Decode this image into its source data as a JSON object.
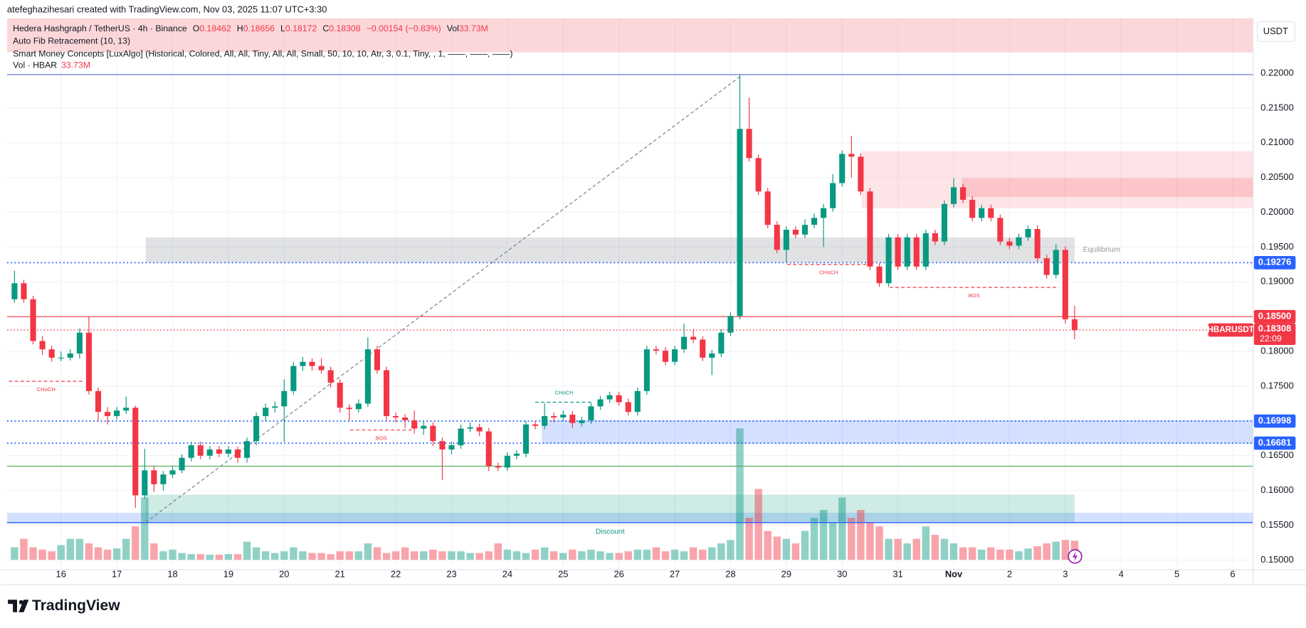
{
  "header": "atefeghazihesari created with TradingView.com, Nov 03, 2025 11:07 UTC+3:30",
  "footer_logo": "TradingView",
  "chart_data": {
    "type": "candlestick",
    "legend": {
      "symbol": "Hedera Hashgraph / TetherUS · 4h · Binance",
      "ohlc_letters": [
        "O",
        "H",
        "L",
        "C"
      ],
      "change": "−0.00154 (−0.83%)",
      "volume_prefix": "Vol",
      "volume_label": "33.73M"
    },
    "indicators": [
      "Auto Fib Retracement (10, 13)",
      "Smart Money Concepts [LuxAlgo] (Historical, Colored, All, All, Tiny, All, All, Small, 50, 10, 10, Atr, 3, 0.1, Tiny, , 1, ——, ——, ——)"
    ],
    "volume_legend": {
      "name": "Vol · HBAR",
      "value": "33.73M"
    },
    "currency": "USDT",
    "up_color": "#089981",
    "down_color": "#f23645",
    "ohlc": [
      [
        0.1875,
        0.1916,
        0.187,
        0.1898
      ],
      [
        0.1898,
        0.1903,
        0.187,
        0.1875
      ],
      [
        0.1875,
        0.188,
        0.181,
        0.1815
      ],
      [
        0.1815,
        0.1822,
        0.1795,
        0.1803
      ],
      [
        0.1803,
        0.1808,
        0.1785,
        0.1791
      ],
      [
        0.1791,
        0.18,
        0.1786,
        0.1791
      ],
      [
        0.1791,
        0.1803,
        0.1787,
        0.1797
      ],
      [
        0.1797,
        0.1833,
        0.179,
        0.1827
      ],
      [
        0.1827,
        0.185,
        0.1738,
        0.1743
      ],
      [
        0.1743,
        0.1748,
        0.17,
        0.1713
      ],
      [
        0.1713,
        0.172,
        0.1695,
        0.1707
      ],
      [
        0.1707,
        0.172,
        0.1702,
        0.1715
      ],
      [
        0.1715,
        0.1735,
        0.171,
        0.1719
      ],
      [
        0.1719,
        0.1722,
        0.1575,
        0.1593
      ],
      [
        0.1593,
        0.166,
        0.1588,
        0.1629
      ],
      [
        0.1629,
        0.1635,
        0.1598,
        0.1609
      ],
      [
        0.1609,
        0.1628,
        0.16,
        0.1623
      ],
      [
        0.1623,
        0.1635,
        0.1618,
        0.1629
      ],
      [
        0.1629,
        0.1652,
        0.1625,
        0.1647
      ],
      [
        0.1647,
        0.167,
        0.1642,
        0.1665
      ],
      [
        0.1665,
        0.167,
        0.1645,
        0.165
      ],
      [
        0.165,
        0.1664,
        0.1645,
        0.1659
      ],
      [
        0.1659,
        0.1664,
        0.1648,
        0.1653
      ],
      [
        0.1653,
        0.1664,
        0.1648,
        0.1659
      ],
      [
        0.1659,
        0.1663,
        0.164,
        0.1647
      ],
      [
        0.1647,
        0.1676,
        0.164,
        0.1671
      ],
      [
        0.1671,
        0.1712,
        0.1665,
        0.1707
      ],
      [
        0.1707,
        0.1725,
        0.17,
        0.1719
      ],
      [
        0.1719,
        0.1728,
        0.1712,
        0.1721
      ],
      [
        0.1721,
        0.176,
        0.167,
        0.1743
      ],
      [
        0.1743,
        0.1785,
        0.1738,
        0.1779
      ],
      [
        0.1779,
        0.1792,
        0.1772,
        0.1785
      ],
      [
        0.1785,
        0.179,
        0.1772,
        0.1779
      ],
      [
        0.1779,
        0.179,
        0.1768,
        0.1773
      ],
      [
        0.1773,
        0.1778,
        0.1748,
        0.1755
      ],
      [
        0.1755,
        0.176,
        0.1712,
        0.1719
      ],
      [
        0.1719,
        0.1724,
        0.17,
        0.1717
      ],
      [
        0.1717,
        0.1731,
        0.1712,
        0.1725
      ],
      [
        0.1725,
        0.182,
        0.172,
        0.1803
      ],
      [
        0.1803,
        0.1808,
        0.1768,
        0.1773
      ],
      [
        0.1773,
        0.1778,
        0.17,
        0.1707
      ],
      [
        0.1707,
        0.1712,
        0.1698,
        0.1705
      ],
      [
        0.1705,
        0.171,
        0.169,
        0.1701
      ],
      [
        0.1701,
        0.1715,
        0.1682,
        0.1689
      ],
      [
        0.1689,
        0.17,
        0.168,
        0.1693
      ],
      [
        0.1693,
        0.1698,
        0.1664,
        0.1671
      ],
      [
        0.1671,
        0.1676,
        0.1615,
        0.1659
      ],
      [
        0.1659,
        0.167,
        0.1652,
        0.1665
      ],
      [
        0.1665,
        0.1695,
        0.166,
        0.1689
      ],
      [
        0.1689,
        0.1698,
        0.1684,
        0.1691
      ],
      [
        0.1691,
        0.1696,
        0.1678,
        0.1685
      ],
      [
        0.1685,
        0.169,
        0.1628,
        0.1635
      ],
      [
        0.1635,
        0.164,
        0.1628,
        0.1633
      ],
      [
        0.1633,
        0.1655,
        0.1628,
        0.165
      ],
      [
        0.165,
        0.1658,
        0.1645,
        0.1653
      ],
      [
        0.1653,
        0.17,
        0.1648,
        0.1695
      ],
      [
        0.1695,
        0.17,
        0.1688,
        0.1693
      ],
      [
        0.1693,
        0.1725,
        0.1688,
        0.1707
      ],
      [
        0.1707,
        0.1712,
        0.1698,
        0.1705
      ],
      [
        0.1705,
        0.1715,
        0.17,
        0.1709
      ],
      [
        0.1709,
        0.1714,
        0.169,
        0.1697
      ],
      [
        0.1697,
        0.1706,
        0.1692,
        0.1701
      ],
      [
        0.1701,
        0.1726,
        0.1696,
        0.1721
      ],
      [
        0.1721,
        0.1736,
        0.1716,
        0.1731
      ],
      [
        0.1731,
        0.1742,
        0.1726,
        0.1737
      ],
      [
        0.1737,
        0.1742,
        0.1722,
        0.1727
      ],
      [
        0.1727,
        0.1732,
        0.1708,
        0.1713
      ],
      [
        0.1713,
        0.1748,
        0.1708,
        0.1743
      ],
      [
        0.1743,
        0.1808,
        0.1738,
        0.1803
      ],
      [
        0.1803,
        0.1808,
        0.1796,
        0.1801
      ],
      [
        0.1801,
        0.1806,
        0.178,
        0.1785
      ],
      [
        0.1785,
        0.1808,
        0.178,
        0.1803
      ],
      [
        0.1803,
        0.184,
        0.1798,
        0.1821
      ],
      [
        0.1821,
        0.1832,
        0.1812,
        0.1817
      ],
      [
        0.1817,
        0.1822,
        0.1786,
        0.1791
      ],
      [
        0.1791,
        0.1802,
        0.1766,
        0.1797
      ],
      [
        0.1797,
        0.1832,
        0.1792,
        0.1827
      ],
      [
        0.1827,
        0.1856,
        0.1822,
        0.1851
      ],
      [
        0.1851,
        0.2198,
        0.1846,
        0.212
      ],
      [
        0.212,
        0.2165,
        0.2073,
        0.2078
      ],
      [
        0.2078,
        0.2083,
        0.2025,
        0.203
      ],
      [
        0.203,
        0.2035,
        0.1977,
        0.1982
      ],
      [
        0.1982,
        0.1987,
        0.1941,
        0.1946
      ],
      [
        0.1946,
        0.198,
        0.1928,
        0.1975
      ],
      [
        0.1975,
        0.198,
        0.1963,
        0.1968
      ],
      [
        0.1968,
        0.199,
        0.1963,
        0.1982
      ],
      [
        0.1982,
        0.1998,
        0.1977,
        0.1992
      ],
      [
        0.1992,
        0.2012,
        0.195,
        0.2006
      ],
      [
        0.2006,
        0.2055,
        0.2001,
        0.2042
      ],
      [
        0.2042,
        0.2089,
        0.2037,
        0.2084
      ],
      [
        0.2084,
        0.211,
        0.205,
        0.208
      ],
      [
        0.208,
        0.2085,
        0.2025,
        0.203
      ],
      [
        0.203,
        0.2035,
        0.1917,
        0.1922
      ],
      [
        0.1922,
        0.1927,
        0.1893,
        0.1898
      ],
      [
        0.1898,
        0.1969,
        0.1893,
        0.1964
      ],
      [
        0.1964,
        0.1969,
        0.1917,
        0.1922
      ],
      [
        0.1922,
        0.1969,
        0.1917,
        0.1964
      ],
      [
        0.1964,
        0.1969,
        0.1917,
        0.1922
      ],
      [
        0.1922,
        0.1975,
        0.1917,
        0.197
      ],
      [
        0.197,
        0.1975,
        0.1953,
        0.1958
      ],
      [
        0.1958,
        0.2017,
        0.1953,
        0.2012
      ],
      [
        0.2012,
        0.2049,
        0.2007,
        0.2036
      ],
      [
        0.2036,
        0.2041,
        0.2013,
        0.2018
      ],
      [
        0.2018,
        0.2023,
        0.1987,
        0.1992
      ],
      [
        0.1992,
        0.2011,
        0.1987,
        0.2006
      ],
      [
        0.2006,
        0.2011,
        0.1987,
        0.1992
      ],
      [
        0.1992,
        0.1997,
        0.1953,
        0.1958
      ],
      [
        0.1958,
        0.1963,
        0.1947,
        0.1952
      ],
      [
        0.1952,
        0.1969,
        0.1947,
        0.1964
      ],
      [
        0.1964,
        0.1981,
        0.1959,
        0.1976
      ],
      [
        0.1976,
        0.1981,
        0.1929,
        0.1934
      ],
      [
        0.1934,
        0.1939,
        0.1905,
        0.191
      ],
      [
        0.191,
        0.1954,
        0.1905,
        0.1946
      ],
      [
        0.1946,
        0.1951,
        0.184,
        0.18462
      ],
      [
        0.18462,
        0.18656,
        0.18172,
        0.18308
      ]
    ],
    "volume": [
      22,
      37,
      22,
      18,
      15,
      26,
      37,
      37,
      29,
      22,
      18,
      20,
      37,
      59,
      110,
      29,
      15,
      18,
      12,
      10,
      10,
      9,
      9,
      10,
      10,
      32,
      22,
      15,
      12,
      15,
      22,
      15,
      12,
      12,
      10,
      15,
      15,
      15,
      29,
      22,
      12,
      15,
      22,
      15,
      15,
      18,
      15,
      15,
      15,
      12,
      12,
      15,
      29,
      18,
      15,
      12,
      18,
      22,
      15,
      12,
      18,
      15,
      18,
      15,
      12,
      12,
      15,
      18,
      18,
      22,
      15,
      18,
      15,
      22,
      18,
      22,
      29,
      35,
      232,
      74,
      125,
      51,
      41,
      37,
      29,
      51,
      74,
      88,
      66,
      110,
      74,
      88,
      66,
      59,
      37,
      37,
      29,
      37,
      59,
      44,
      37,
      29,
      22,
      22,
      18,
      22,
      18,
      18,
      15,
      20,
      24,
      29,
      32,
      35,
      33.73
    ],
    "xlim": [
      -0.8,
      133.2
    ],
    "xticks": [
      {
        "value": 5,
        "label": "16"
      },
      {
        "value": 11,
        "label": "17"
      },
      {
        "value": 17,
        "label": "18"
      },
      {
        "value": 23,
        "label": "19"
      },
      {
        "value": 29,
        "label": "20"
      },
      {
        "value": 35,
        "label": "21"
      },
      {
        "value": 41,
        "label": "22"
      },
      {
        "value": 47,
        "label": "23"
      },
      {
        "value": 53,
        "label": "24"
      },
      {
        "value": 59,
        "label": "25"
      },
      {
        "value": 65,
        "label": "26"
      },
      {
        "value": 71,
        "label": "27"
      },
      {
        "value": 77,
        "label": "28"
      },
      {
        "value": 83,
        "label": "29"
      },
      {
        "value": 89,
        "label": "30"
      },
      {
        "value": 95,
        "label": "31"
      },
      {
        "value": 101,
        "label": "Nov"
      },
      {
        "value": 107,
        "label": "2"
      },
      {
        "value": 113,
        "label": "3"
      },
      {
        "value": 119,
        "label": "4"
      },
      {
        "value": 125,
        "label": "5"
      },
      {
        "value": 131,
        "label": "6"
      }
    ],
    "ylim": [
      0.1486,
      0.2279
    ],
    "yticks": [
      {
        "value": 0.15,
        "label": "0.15000"
      },
      {
        "value": 0.155,
        "label": "0.15500"
      },
      {
        "value": 0.16,
        "label": "0.16000"
      },
      {
        "value": 0.165,
        "label": "0.16500"
      },
      {
        "value": 0.17,
        "label": "0.17000"
      },
      {
        "value": 0.175,
        "label": "0.17500"
      },
      {
        "value": 0.18,
        "label": "0.18000"
      },
      {
        "value": 0.185,
        "label": "0.18500"
      },
      {
        "value": 0.19,
        "label": "0.19000"
      },
      {
        "value": 0.195,
        "label": "0.19500"
      },
      {
        "value": 0.2,
        "label": "0.20000"
      },
      {
        "value": 0.205,
        "label": "0.20500"
      },
      {
        "value": 0.21,
        "label": "0.21000"
      },
      {
        "value": 0.215,
        "label": "0.21500"
      },
      {
        "value": 0.22,
        "label": "0.22000"
      }
    ],
    "grid": true,
    "price_lines": [
      {
        "value": 0.2198,
        "color": "#5b73c9",
        "dash": "solid"
      },
      {
        "value": 0.19276,
        "color": "#2962ff",
        "dash": "dotted",
        "badge": true
      },
      {
        "value": 0.185,
        "label": "0.18500",
        "color": "#f23645",
        "dash": "solid",
        "badge": true
      },
      {
        "value": 0.16998,
        "color": "#2962ff",
        "dash": "dotted",
        "badge": true
      },
      {
        "value": 0.16681,
        "color": "#2962ff",
        "dash": "dotted",
        "badge": true
      },
      {
        "value": 0.1635,
        "color": "#4caf50",
        "dash": "solid"
      },
      {
        "value": 0.1554,
        "color": "#2962ff",
        "dash": "solid"
      }
    ],
    "last_price": {
      "symbol": "HBARUSDT",
      "countdown": "22:09",
      "color": "#f23645"
    },
    "zones": [
      {
        "x": [
          -0.8,
          133.2
        ],
        "y": [
          0.1552,
          0.1568
        ],
        "color": "rgba(41,98,255,0.2)"
      },
      {
        "x": [
          14.1,
          114
        ],
        "y": [
          0.1555,
          0.1594
        ],
        "color": "rgba(8,153,129,0.2)",
        "label": "Discount",
        "label_position": "center"
      },
      {
        "x": [
          14.1,
          114
        ],
        "y": [
          0.1928,
          0.1964
        ],
        "color": "rgba(120,123,134,0.22)",
        "label": "Equilibrium",
        "label_position": "right"
      },
      {
        "x": [
          91.1,
          133.2
        ],
        "y": [
          0.2006,
          0.2088
        ],
        "color": "rgba(242,54,69,0.13)"
      },
      {
        "x": [
          101.9,
          133.2
        ],
        "y": [
          0.2022,
          0.2049
        ],
        "color": "rgba(242,54,69,0.18)"
      },
      {
        "x": [
          56.7,
          133.2
        ],
        "y": [
          0.1667,
          0.1701
        ],
        "color": "rgba(41,98,255,0.2)"
      }
    ],
    "structures": [
      {
        "label": "CHoCH",
        "price": 0.1757,
        "x": [
          -0.6,
          7.4
        ],
        "color": "#f23645"
      },
      {
        "label": "BOS",
        "price": 0.1687,
        "x": [
          36.1,
          42.8
        ],
        "color": "#f23645"
      },
      {
        "label": "CHoCH",
        "price": 0.1727,
        "x": [
          56,
          62.2
        ],
        "color": "#089981"
      },
      {
        "label": "CHoCH",
        "price": 0.1925,
        "x": [
          83.1,
          92
        ],
        "color": "#f23645"
      },
      {
        "label": "BOS",
        "price": 0.1892,
        "x": [
          94.1,
          112.3
        ],
        "color": "#f23645"
      }
    ],
    "fib_line": {
      "x": [
        14.1,
        78.3
      ],
      "y": [
        0.1554,
        0.2198
      ]
    }
  }
}
